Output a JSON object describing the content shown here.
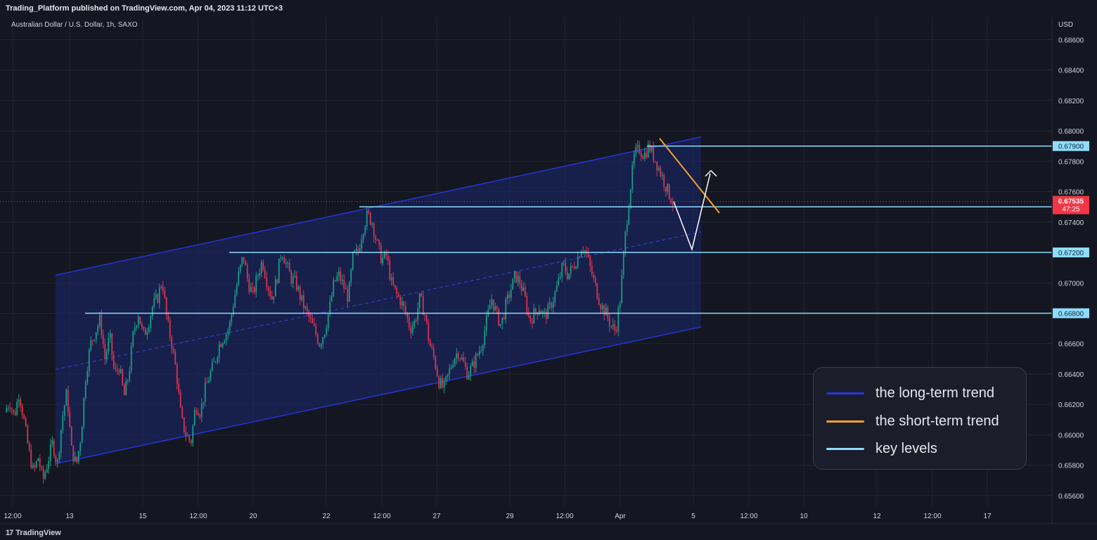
{
  "header": {
    "published": "Trading_Platform published on TradingView.com, Apr 04, 2023 11:12 UTC+3"
  },
  "footer": {
    "logo_mark": "17",
    "logo_text": "TradingView"
  },
  "legend": {
    "items": [
      {
        "label": "the long-term trend",
        "color": "#2436d6"
      },
      {
        "label": "the short-term trend",
        "color": "#f2a22a"
      },
      {
        "label": "key levels",
        "color": "#8fdcff"
      }
    ]
  },
  "chart_data": {
    "type": "candlestick",
    "title": "Australian Dollar / U.S. Dollar, 1h, SAXO",
    "currency": "USD",
    "x_ticks": [
      "12:00",
      "13",
      "15",
      "12:00",
      "20",
      "22",
      "12:00",
      "27",
      "29",
      "12:00",
      "Apr",
      "5",
      "12:00",
      "10",
      "12",
      "12:00",
      "17"
    ],
    "y_ticks": [
      0.656,
      0.658,
      0.66,
      0.662,
      0.664,
      0.666,
      0.668,
      0.67,
      0.672,
      0.674,
      0.676,
      0.678,
      0.68,
      0.682,
      0.684,
      0.686
    ],
    "y_tick_labels": [
      "0.65600",
      "0.65800",
      "0.66000",
      "0.66200",
      "0.66400",
      "0.66600",
      "0.66800",
      "0.67000",
      "0.67200",
      "0.67400",
      "0.67600",
      "0.67800",
      "0.68000",
      "0.68200",
      "0.68400",
      "0.68600"
    ],
    "ylim": [
      0.6553,
      0.6875
    ],
    "grid": true,
    "current_price": {
      "value": 0.67535,
      "label": "0.67535",
      "countdown": "47:25"
    },
    "key_levels": [
      {
        "value": 0.679,
        "label": "0.67900"
      },
      {
        "value": 0.675,
        "label": "0.67500"
      },
      {
        "value": 0.672,
        "label": "0.67200"
      },
      {
        "value": 0.668,
        "label": "0.66800"
      }
    ],
    "channel": {
      "upper_start": 0.6705,
      "upper_end": 0.6796,
      "lower_start": 0.6581,
      "lower_end": 0.6671
    },
    "price_path": [
      0.6615,
      0.6622,
      0.6612,
      0.6628,
      0.661,
      0.659,
      0.6575,
      0.6585,
      0.657,
      0.6582,
      0.6595,
      0.658,
      0.661,
      0.6628,
      0.659,
      0.658,
      0.66,
      0.664,
      0.666,
      0.6668,
      0.6676,
      0.665,
      0.6665,
      0.664,
      0.6645,
      0.6625,
      0.664,
      0.6668,
      0.668,
      0.6665,
      0.6672,
      0.6685,
      0.669,
      0.6702,
      0.6675,
      0.666,
      0.664,
      0.661,
      0.66,
      0.6595,
      0.662,
      0.6615,
      0.663,
      0.664,
      0.6648,
      0.666,
      0.6665,
      0.667,
      0.6688,
      0.6705,
      0.6718,
      0.67,
      0.6692,
      0.6705,
      0.6715,
      0.67,
      0.669,
      0.6702,
      0.6722,
      0.6712,
      0.6703,
      0.67,
      0.669,
      0.6682,
      0.6675,
      0.6668,
      0.666,
      0.6668,
      0.6682,
      0.67,
      0.6705,
      0.6698,
      0.669,
      0.6718,
      0.672,
      0.6735,
      0.6745,
      0.674,
      0.6726,
      0.6715,
      0.6718,
      0.67,
      0.6693,
      0.6688,
      0.668,
      0.667,
      0.6675,
      0.669,
      0.668,
      0.666,
      0.665,
      0.6635,
      0.663,
      0.664,
      0.665,
      0.6655,
      0.6648,
      0.664,
      0.6645,
      0.6652,
      0.666,
      0.6675,
      0.669,
      0.668,
      0.6672,
      0.6685,
      0.6695,
      0.6705,
      0.67,
      0.669,
      0.6675,
      0.668,
      0.6684,
      0.6678,
      0.6682,
      0.669,
      0.67,
      0.6712,
      0.6705,
      0.671,
      0.6716,
      0.6725,
      0.6718,
      0.6706,
      0.6695,
      0.6685,
      0.668,
      0.6672,
      0.6668,
      0.669,
      0.673,
      0.676,
      0.6785,
      0.6788,
      0.6784,
      0.679,
      0.6783,
      0.6776,
      0.6768,
      0.676,
      0.6753
    ],
    "projection": {
      "description": "",
      "points": [
        0.67535,
        0.6722,
        0.6772
      ]
    },
    "series": [
      {
        "name": "the long-term trend"
      },
      {
        "name": "the short-term trend"
      },
      {
        "name": "key levels"
      }
    ]
  }
}
